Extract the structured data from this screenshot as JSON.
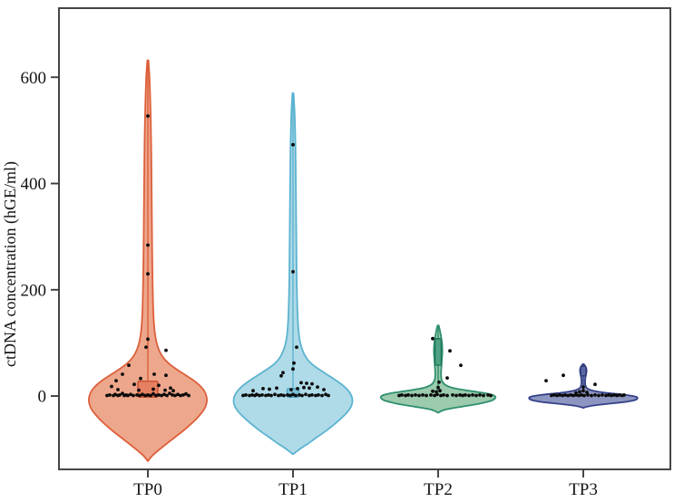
{
  "figure": {
    "background": "#ffffff"
  },
  "chart_data": {
    "type": "violin",
    "title": "",
    "xlabel": "",
    "ylabel": "ctDNA concentration (hGE/ml)",
    "categories": [
      "TP0",
      "TP1",
      "TP2",
      "TP3"
    ],
    "yticks": [
      0,
      200,
      400,
      600
    ],
    "ylim": [
      -138,
      730
    ],
    "grid": false,
    "legend": "none",
    "axis_color": "#3c3c3c",
    "text_color": "#141414",
    "point_color": "#0b0b0b",
    "point_radius": 1.9,
    "series": [
      {
        "name": "TP0",
        "fill": "#EDA78C",
        "stroke": "#DD5F3B",
        "max_value": 632,
        "min_value": -122,
        "median_line": {
          "from": 630,
          "to": 28
        },
        "box": {
          "top": 28,
          "bottom": -2,
          "halfwidth": 11,
          "fill": "#E58063",
          "stroke": "#C9502F"
        },
        "profile": [
          [
            632,
            0.6
          ],
          [
            600,
            1.8
          ],
          [
            560,
            2.6
          ],
          [
            520,
            3.2
          ],
          [
            480,
            3.6
          ],
          [
            440,
            3.9
          ],
          [
            400,
            4.1
          ],
          [
            360,
            4.3
          ],
          [
            320,
            4.5
          ],
          [
            280,
            4.7
          ],
          [
            240,
            5.0
          ],
          [
            200,
            5.4
          ],
          [
            160,
            6.0
          ],
          [
            130,
            7.0
          ],
          [
            110,
            8.5
          ],
          [
            95,
            10.5
          ],
          [
            82,
            13.5
          ],
          [
            70,
            18
          ],
          [
            60,
            24
          ],
          [
            50,
            32
          ],
          [
            40,
            41
          ],
          [
            30,
            50
          ],
          [
            20,
            57
          ],
          [
            10,
            62
          ],
          [
            0,
            64.5
          ],
          [
            -10,
            65
          ],
          [
            -20,
            63.5
          ],
          [
            -30,
            60
          ],
          [
            -42,
            54
          ],
          [
            -55,
            46
          ],
          [
            -68,
            37
          ],
          [
            -80,
            28
          ],
          [
            -92,
            19
          ],
          [
            -103,
            11
          ],
          [
            -112,
            5
          ],
          [
            -119,
            1.5
          ],
          [
            -122,
            0.4
          ]
        ],
        "points": [
          [
            -45,
            1
          ],
          [
            -42,
            2
          ],
          [
            -38,
            1
          ],
          [
            -36,
            3
          ],
          [
            -33,
            1
          ],
          [
            -31,
            2
          ],
          [
            -28,
            5
          ],
          [
            -26,
            1
          ],
          [
            -24,
            2
          ],
          [
            -22,
            1
          ],
          [
            -19,
            3
          ],
          [
            -16,
            1
          ],
          [
            -12,
            2
          ],
          [
            -9,
            1
          ],
          [
            -6,
            3
          ],
          [
            -3,
            1
          ],
          [
            0,
            2
          ],
          [
            3,
            1
          ],
          [
            6,
            4
          ],
          [
            9,
            1
          ],
          [
            12,
            2
          ],
          [
            15,
            1
          ],
          [
            18,
            3
          ],
          [
            21,
            1
          ],
          [
            24,
            5
          ],
          [
            27,
            2
          ],
          [
            30,
            1
          ],
          [
            33,
            3
          ],
          [
            36,
            1
          ],
          [
            39,
            2
          ],
          [
            42,
            4
          ],
          [
            45,
            1
          ],
          [
            -33,
            12
          ],
          [
            -10,
            11
          ],
          [
            6,
            13
          ],
          [
            19,
            11
          ],
          [
            28,
            10
          ],
          [
            -40,
            18
          ],
          [
            -15,
            22
          ],
          [
            12,
            20
          ],
          [
            25,
            15
          ],
          [
            -35,
            29
          ],
          [
            -8,
            33
          ],
          [
            -28,
            41
          ],
          [
            7,
            41
          ],
          [
            20,
            39
          ],
          [
            -21,
            58
          ],
          [
            -2,
            92
          ],
          [
            20,
            86
          ],
          [
            0,
            107
          ],
          [
            0,
            230
          ],
          [
            0,
            284
          ],
          [
            0,
            527
          ]
        ]
      },
      {
        "name": "TP1",
        "fill": "#AFDAE7",
        "stroke": "#5BB3D0",
        "max_value": 570,
        "min_value": -109,
        "median_line": {
          "from": 568,
          "to": 14
        },
        "box": {
          "top": 14,
          "bottom": -2,
          "halfwidth": 6.5,
          "fill": "#7FC0D6",
          "stroke": "#4DA6C6"
        },
        "profile": [
          [
            570,
            0.6
          ],
          [
            540,
            1.6
          ],
          [
            510,
            2.2
          ],
          [
            470,
            2.7
          ],
          [
            430,
            3.0
          ],
          [
            390,
            3.2
          ],
          [
            350,
            3.4
          ],
          [
            310,
            3.6
          ],
          [
            270,
            3.8
          ],
          [
            230,
            4.0
          ],
          [
            190,
            4.4
          ],
          [
            155,
            5.0
          ],
          [
            130,
            5.8
          ],
          [
            110,
            7.0
          ],
          [
            95,
            8.8
          ],
          [
            82,
            11.5
          ],
          [
            70,
            15.5
          ],
          [
            60,
            21
          ],
          [
            50,
            29
          ],
          [
            40,
            38
          ],
          [
            30,
            47
          ],
          [
            20,
            55
          ],
          [
            10,
            61
          ],
          [
            0,
            64.5
          ],
          [
            -10,
            65.5
          ],
          [
            -20,
            64
          ],
          [
            -30,
            60
          ],
          [
            -42,
            53
          ],
          [
            -54,
            45
          ],
          [
            -66,
            36
          ],
          [
            -78,
            26
          ],
          [
            -89,
            17
          ],
          [
            -98,
            9
          ],
          [
            -105,
            3.5
          ],
          [
            -109,
            0.5
          ]
        ],
        "points": [
          [
            -55,
            1
          ],
          [
            -52,
            2
          ],
          [
            -48,
            1
          ],
          [
            -45,
            2
          ],
          [
            -42,
            1
          ],
          [
            -40,
            3
          ],
          [
            -37,
            1
          ],
          [
            -34,
            2
          ],
          [
            -30,
            1
          ],
          [
            -27,
            2
          ],
          [
            -24,
            1
          ],
          [
            -20,
            3
          ],
          [
            -16,
            1
          ],
          [
            -13,
            2
          ],
          [
            -10,
            1
          ],
          [
            -6,
            2
          ],
          [
            -3,
            1
          ],
          [
            0,
            3
          ],
          [
            3,
            1
          ],
          [
            7,
            2
          ],
          [
            10,
            1
          ],
          [
            14,
            3
          ],
          [
            18,
            1
          ],
          [
            21,
            2
          ],
          [
            25,
            1
          ],
          [
            28,
            2
          ],
          [
            32,
            1
          ],
          [
            36,
            3
          ],
          [
            39,
            1
          ],
          [
            -26,
            13
          ],
          [
            -18,
            15
          ],
          [
            -2,
            12
          ],
          [
            5,
            14
          ],
          [
            12,
            16
          ],
          [
            18,
            15
          ],
          [
            -44,
            10
          ],
          [
            -33,
            14
          ],
          [
            9,
            25
          ],
          [
            15,
            24
          ],
          [
            21,
            23
          ],
          [
            27,
            17
          ],
          [
            34,
            12
          ],
          [
            -13,
            38
          ],
          [
            -11,
            44
          ],
          [
            0,
            51
          ],
          [
            1,
            62
          ],
          [
            4,
            92
          ],
          [
            0,
            234
          ],
          [
            0,
            473
          ]
        ]
      },
      {
        "name": "TP2",
        "fill": "#9CCBAD",
        "stroke": "#2E8F6E",
        "max_value": 133,
        "min_value": -31,
        "median_line": {
          "from": 131,
          "to": 10
        },
        "box": {
          "top": 108,
          "bottom": 58,
          "halfwidth": 3.4,
          "fill": "#4FA183",
          "stroke": "#1F7758"
        },
        "profile": [
          [
            133,
            0.6
          ],
          [
            126,
            1.6
          ],
          [
            118,
            2.6
          ],
          [
            110,
            3.4
          ],
          [
            100,
            4.2
          ],
          [
            90,
            4.6
          ],
          [
            80,
            4.6
          ],
          [
            70,
            4.2
          ],
          [
            60,
            3.8
          ],
          [
            50,
            3.4
          ],
          [
            42,
            3.2
          ],
          [
            35,
            3.4
          ],
          [
            30,
            4.0
          ],
          [
            25,
            5.5
          ],
          [
            21,
            8
          ],
          [
            17,
            13
          ],
          [
            14,
            20
          ],
          [
            11,
            30
          ],
          [
            8,
            42
          ],
          [
            5,
            53
          ],
          [
            2,
            60
          ],
          [
            -1,
            63
          ],
          [
            -5,
            62.5
          ],
          [
            -9,
            58
          ],
          [
            -13,
            49
          ],
          [
            -17,
            37
          ],
          [
            -20,
            26
          ],
          [
            -23,
            15
          ],
          [
            -26,
            7
          ],
          [
            -29,
            2.5
          ],
          [
            -31,
            0.5
          ]
        ],
        "points": [
          [
            -43,
            1
          ],
          [
            -40,
            2
          ],
          [
            -36,
            1
          ],
          [
            -33,
            2
          ],
          [
            -29,
            1
          ],
          [
            -25,
            2
          ],
          [
            -21,
            1
          ],
          [
            -17,
            2
          ],
          [
            -13,
            1
          ],
          [
            -8,
            2
          ],
          [
            -4,
            1
          ],
          [
            -1,
            3
          ],
          [
            3,
            1
          ],
          [
            6,
            2
          ],
          [
            10,
            1
          ],
          [
            16,
            2
          ],
          [
            20,
            1
          ],
          [
            24,
            2
          ],
          [
            27,
            1
          ],
          [
            30,
            2
          ],
          [
            34,
            1
          ],
          [
            38,
            2
          ],
          [
            42,
            1
          ],
          [
            46,
            2
          ],
          [
            50,
            1
          ],
          [
            55,
            2
          ],
          [
            58,
            1
          ],
          [
            -6,
            9
          ],
          [
            -2,
            8
          ],
          [
            2,
            10
          ],
          [
            0,
            16
          ],
          [
            1,
            26
          ],
          [
            10,
            34
          ],
          [
            25,
            58
          ],
          [
            13,
            85
          ],
          [
            -6,
            108
          ]
        ]
      },
      {
        "name": "TP3",
        "fill": "#8D96C0",
        "stroke": "#35418A",
        "max_value": 60,
        "min_value": -22,
        "median_line": {
          "from": 58,
          "to": 8
        },
        "box": {
          "top": 56,
          "bottom": 38,
          "halfwidth": 3.0,
          "fill": "#5C68A5",
          "stroke": "#2B3878"
        },
        "profile": [
          [
            60,
            0.7
          ],
          [
            56,
            2.2
          ],
          [
            52,
            3.3
          ],
          [
            47,
            3.6
          ],
          [
            42,
            3.2
          ],
          [
            37,
            2.6
          ],
          [
            32,
            2.2
          ],
          [
            27,
            2.0
          ],
          [
            22,
            2.2
          ],
          [
            18,
            2.8
          ],
          [
            15,
            4
          ],
          [
            12,
            7
          ],
          [
            10,
            11
          ],
          [
            8,
            17
          ],
          [
            6,
            26
          ],
          [
            4,
            37
          ],
          [
            2,
            47
          ],
          [
            0,
            55
          ],
          [
            -2,
            59
          ],
          [
            -5,
            59.5
          ],
          [
            -8,
            56
          ],
          [
            -11,
            47
          ],
          [
            -13,
            36
          ],
          [
            -15,
            25
          ],
          [
            -17,
            15
          ],
          [
            -19,
            7
          ],
          [
            -21,
            2
          ],
          [
            -22,
            0.5
          ]
        ],
        "points": [
          [
            -35,
            1
          ],
          [
            -32,
            2
          ],
          [
            -29,
            1
          ],
          [
            -26,
            2
          ],
          [
            -23,
            1
          ],
          [
            -20,
            2
          ],
          [
            -17,
            1
          ],
          [
            -14,
            2
          ],
          [
            -11,
            1
          ],
          [
            -8,
            2
          ],
          [
            -5,
            1
          ],
          [
            -2,
            2
          ],
          [
            1,
            1
          ],
          [
            5,
            2
          ],
          [
            9,
            1
          ],
          [
            13,
            2
          ],
          [
            17,
            1
          ],
          [
            21,
            2
          ],
          [
            25,
            1
          ],
          [
            28,
            2
          ],
          [
            31,
            1
          ],
          [
            34,
            2
          ],
          [
            37,
            1
          ],
          [
            40,
            2
          ],
          [
            43,
            1
          ],
          [
            45,
            2
          ],
          [
            -4,
            8
          ],
          [
            0,
            10
          ],
          [
            4,
            7
          ],
          [
            -8,
            6
          ],
          [
            0,
            17
          ],
          [
            13,
            22
          ],
          [
            -22,
            39
          ],
          [
            -41,
            29
          ]
        ]
      }
    ]
  }
}
